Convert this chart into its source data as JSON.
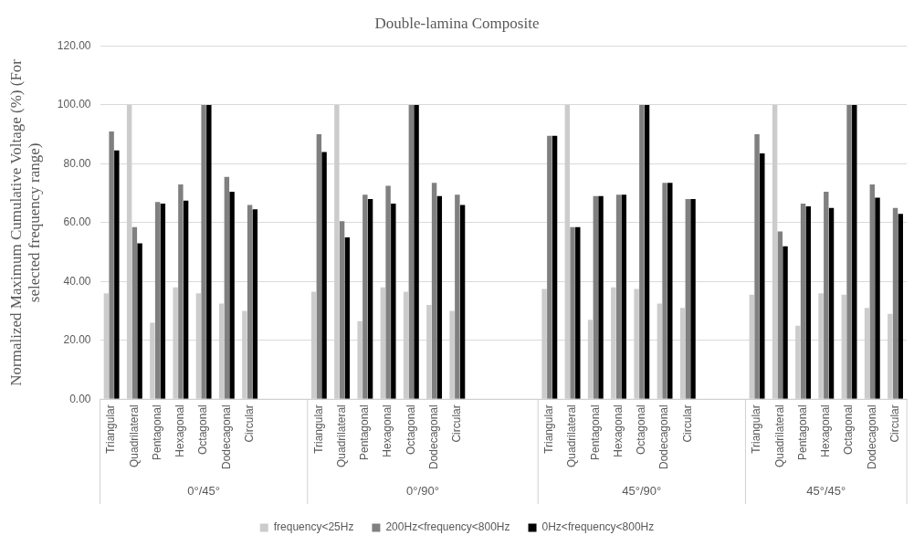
{
  "chart_data": {
    "type": "bar",
    "title": "Double-lamina Composite",
    "ylabel": "Normalized Maximum Cumulative Voltage (%) (For selected frequency range)",
    "categories": [
      "Triangular",
      "Quadrilateral",
      "Pentagonal",
      "Hexagonal",
      "Octagonal",
      "Dodecagonal",
      "Circular",
      null,
      null,
      "Triangular",
      "Quadrilateral",
      "Pentagonal",
      "Hexagonal",
      "Octagonal",
      "Dodecagonal",
      "Circular",
      null,
      null,
      null,
      "Triangular",
      "Quadrilateral",
      "Pentagonal",
      "Hexagonal",
      "Octagonal",
      "Dodecagonal",
      "Circular",
      null,
      null,
      "Triangular",
      "Quadrilateral",
      "Pentagonal",
      "Hexagonal",
      "Octagonal",
      "Dodecagonal",
      "Circular"
    ],
    "annotations": [
      "0°/45°",
      "0°/90°",
      "45°/90°",
      "45°/45°"
    ],
    "series": [
      {
        "name": "frequency<25Hz",
        "color": "#cccccc",
        "values": [
          36,
          100,
          26,
          38,
          36,
          32.5,
          30,
          null,
          null,
          36.5,
          100,
          26.5,
          38,
          36.5,
          32,
          30,
          null,
          null,
          null,
          37.5,
          100,
          27,
          38,
          37.5,
          32.5,
          31,
          null,
          null,
          35.5,
          100,
          25,
          36,
          35.5,
          31,
          29
        ]
      },
      {
        "name": "200Hz<frequency<800Hz",
        "color": "#808080",
        "values": [
          91,
          58.5,
          67,
          73,
          100,
          75.5,
          66,
          null,
          null,
          90,
          60.5,
          69.5,
          72.5,
          100,
          73.5,
          69.5,
          null,
          null,
          null,
          89.5,
          58.5,
          69,
          69.5,
          100,
          73.5,
          68,
          null,
          null,
          90,
          57,
          66.5,
          70.5,
          100,
          73,
          65
        ]
      },
      {
        "name": "0Hz<frequency<800Hz",
        "color": "#000000",
        "values": [
          84.5,
          53,
          66.5,
          67.5,
          100,
          70.5,
          64.5,
          null,
          null,
          84,
          55,
          68,
          66.5,
          100,
          69,
          66,
          null,
          null,
          null,
          89.5,
          58.5,
          69,
          69.5,
          100,
          73.5,
          68,
          null,
          null,
          83.5,
          52,
          65.5,
          65,
          100,
          68.5,
          63
        ]
      }
    ],
    "ylim": [
      0,
      120
    ],
    "yticks": [
      {
        "value": 0,
        "label": "0.00"
      },
      {
        "value": 20,
        "label": "20.00"
      },
      {
        "value": 40,
        "label": "40.00"
      },
      {
        "value": 60,
        "label": "60.00"
      },
      {
        "value": 80,
        "label": "80.00"
      },
      {
        "value": 100,
        "label": "100.00"
      },
      {
        "value": 120,
        "label": "120.00"
      }
    ],
    "grid": "y",
    "legend": "bottom"
  }
}
